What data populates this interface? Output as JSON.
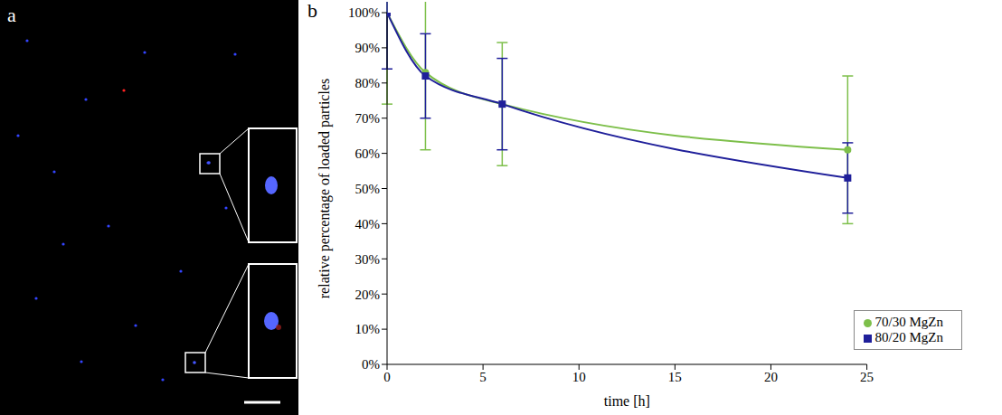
{
  "image_panel": {
    "panel_label": "a"
  },
  "chart_data": {
    "panel_label": "b",
    "type": "line",
    "x_label": "time [h]",
    "y_label": "relative percentage of loaded particles",
    "x": [
      0,
      2,
      6,
      24
    ],
    "series": [
      {
        "name": "70/30 MgZn",
        "color": "#7dbf4a",
        "marker": "circle",
        "line_style": "solid",
        "values": [
          100,
          83,
          74,
          61
        ],
        "errors": [
          26,
          22,
          17.5,
          21
        ]
      },
      {
        "name": "80/20 MgZn",
        "color": "#1f1f9a",
        "marker": "square",
        "line_style": "solid",
        "values": [
          100,
          82,
          74,
          53
        ],
        "errors": [
          16,
          12,
          13,
          10
        ]
      }
    ],
    "xlim": [
      0,
      25
    ],
    "xticks": [
      0,
      5,
      10,
      15,
      20,
      25
    ],
    "ylim": [
      0,
      100
    ],
    "yticks": [
      {
        "value": 0,
        "label": "0%"
      },
      {
        "value": 10,
        "label": "10%"
      },
      {
        "value": 20,
        "label": "20%"
      },
      {
        "value": 30,
        "label": "30%"
      },
      {
        "value": 40,
        "label": "40%"
      },
      {
        "value": 50,
        "label": "50%"
      },
      {
        "value": 60,
        "label": "60%"
      },
      {
        "value": 70,
        "label": "70%"
      },
      {
        "value": 80,
        "label": "80%"
      },
      {
        "value": 90,
        "label": "90%"
      },
      {
        "value": 100,
        "label": "100%"
      }
    ],
    "grid": false,
    "legend": "lower right"
  }
}
